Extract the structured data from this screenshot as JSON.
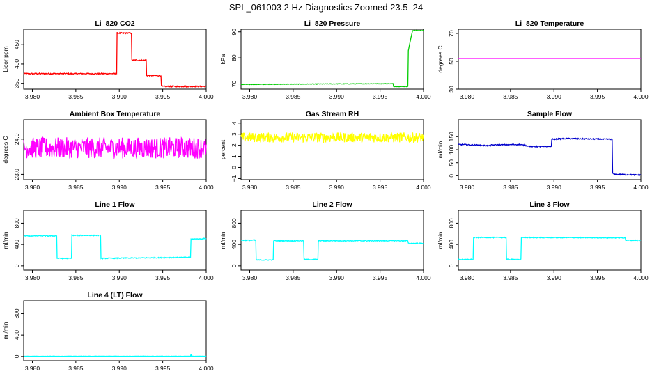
{
  "page_title": "SPL_061003  2 Hz Diagnostics Zoomed 23.5–24",
  "chart_data": [
    {
      "type": "line",
      "title": "Li–820 CO2",
      "ylabel": "Licor ppm",
      "color": "#ff0000",
      "xlim": [
        3.979,
        4.0
      ],
      "ylim": [
        335,
        490
      ],
      "xticks": [
        "3.980",
        "3.985",
        "3.990",
        "3.995",
        "4.000"
      ],
      "yticks": [
        {
          "v": 350,
          "label": "350"
        },
        {
          "v": 400,
          "label": "400"
        },
        {
          "v": 450,
          "label": "450"
        }
      ],
      "noise": 1.5,
      "series": [
        {
          "x": [
            3.979,
            3.9897,
            3.9897,
            3.9914,
            3.9914,
            3.9931,
            3.9931,
            3.9948,
            3.9948,
            4.0
          ],
          "values": [
            375,
            375,
            480,
            480,
            410,
            410,
            370,
            370,
            342,
            342
          ]
        }
      ]
    },
    {
      "type": "line",
      "title": "Li–820 Pressure",
      "ylabel": "kPa",
      "color": "#00cc00",
      "xlim": [
        3.979,
        4.0
      ],
      "ylim": [
        68,
        91
      ],
      "xticks": [
        "3.980",
        "3.985",
        "3.990",
        "3.995",
        "4.000"
      ],
      "yticks": [
        {
          "v": 70,
          "label": "70"
        },
        {
          "v": 80,
          "label": "80"
        },
        {
          "v": 90,
          "label": "90"
        }
      ],
      "noise": 0.1,
      "series": [
        {
          "x": [
            3.979,
            3.9895,
            3.9965,
            3.9965,
            3.9982,
            3.9982,
            3.9987,
            3.9987,
            4.0
          ],
          "values": [
            69.8,
            70.0,
            70.1,
            69.0,
            69.0,
            82,
            90,
            90.5,
            90.5
          ]
        }
      ]
    },
    {
      "type": "line",
      "title": "Li–820 Temperature",
      "ylabel": "degrees C",
      "color": "#ff00ff",
      "xlim": [
        3.979,
        4.0
      ],
      "ylim": [
        30,
        73
      ],
      "xticks": [
        "3.980",
        "3.985",
        "3.990",
        "3.995",
        "4.000"
      ],
      "yticks": [
        {
          "v": 30,
          "label": "30"
        },
        {
          "v": 50,
          "label": "50"
        },
        {
          "v": 70,
          "label": "70"
        }
      ],
      "noise": 0,
      "series": [
        {
          "x": [
            3.979,
            4.0
          ],
          "values": [
            52,
            52
          ]
        }
      ]
    },
    {
      "type": "line",
      "title": "Ambient Box Temperature",
      "ylabel": "degrees C",
      "color": "#ff00ff",
      "xlim": [
        3.979,
        4.0
      ],
      "ylim": [
        22.85,
        24.55
      ],
      "xticks": [
        "3.980",
        "3.985",
        "3.990",
        "3.995",
        "4.000"
      ],
      "yticks": [
        {
          "v": 23.0,
          "label": "23.0"
        },
        {
          "v": 24.0,
          "label": "24.0"
        }
      ],
      "noise": 0.3,
      "series": [
        {
          "x": [
            3.979,
            4.0
          ],
          "values": [
            23.75,
            23.75
          ]
        }
      ]
    },
    {
      "type": "line",
      "title": "Gas Stream RH",
      "ylabel": "percent",
      "color": "#ffff00",
      "xlim": [
        3.979,
        4.0
      ],
      "ylim": [
        -1.1,
        4.3
      ],
      "xticks": [
        "3.980",
        "3.985",
        "3.990",
        "3.995",
        "4.000"
      ],
      "yticks": [
        {
          "v": -1,
          "label": "−1"
        },
        {
          "v": 0,
          "label": "0"
        },
        {
          "v": 1,
          "label": "1"
        },
        {
          "v": 2,
          "label": "2"
        },
        {
          "v": 3,
          "label": "3"
        },
        {
          "v": 4,
          "label": "4"
        }
      ],
      "noise": 0.45,
      "series": [
        {
          "x": [
            3.979,
            4.0
          ],
          "values": [
            2.7,
            2.7
          ]
        }
      ]
    },
    {
      "type": "line",
      "title": "Sample Flow",
      "ylabel": "ml/min",
      "color": "#0000cc",
      "xlim": [
        3.979,
        4.0
      ],
      "ylim": [
        -15,
        215
      ],
      "xticks": [
        "3.980",
        "3.985",
        "3.990",
        "3.995",
        "4.000"
      ],
      "yticks": [
        {
          "v": 0,
          "label": "0"
        },
        {
          "v": 50,
          "label": "50"
        },
        {
          "v": 100,
          "label": "100"
        },
        {
          "v": 150,
          "label": "150"
        }
      ],
      "noise": 2,
      "series": [
        {
          "x": [
            3.979,
            3.981,
            3.9827,
            3.9827,
            3.986,
            3.9875,
            3.9875,
            3.9897,
            3.9897,
            3.9914,
            3.9967,
            3.9967,
            3.997,
            4.0
          ],
          "values": [
            120,
            118,
            115,
            118,
            120,
            112,
            112,
            112,
            140,
            143,
            140,
            10,
            5,
            3
          ]
        }
      ]
    },
    {
      "type": "line",
      "title": "Line 1 Flow",
      "ylabel": "ml/min",
      "color": "#00ffff",
      "xlim": [
        3.979,
        4.0
      ],
      "ylim": [
        -80,
        1040
      ],
      "xticks": [
        "3.980",
        "3.985",
        "3.990",
        "3.995",
        "4.000"
      ],
      "yticks": [
        {
          "v": 0,
          "label": "0"
        },
        {
          "v": 400,
          "label": "400"
        },
        {
          "v": 800,
          "label": "800"
        }
      ],
      "noise": 8,
      "series": [
        {
          "x": [
            3.979,
            3.979,
            3.9828,
            3.9828,
            3.9845,
            3.9845,
            3.9879,
            3.9879,
            3.9982,
            3.9982,
            4.0
          ],
          "values": [
            170,
            560,
            560,
            140,
            140,
            570,
            570,
            140,
            160,
            500,
            510
          ]
        }
      ]
    },
    {
      "type": "line",
      "title": "Line 2 Flow",
      "ylabel": "ml/min",
      "color": "#00ffff",
      "xlim": [
        3.979,
        4.0
      ],
      "ylim": [
        -80,
        1040
      ],
      "xticks": [
        "3.980",
        "3.985",
        "3.990",
        "3.995",
        "4.000"
      ],
      "yticks": [
        {
          "v": 0,
          "label": "0"
        },
        {
          "v": 400,
          "label": "400"
        },
        {
          "v": 800,
          "label": "800"
        }
      ],
      "noise": 8,
      "series": [
        {
          "x": [
            3.979,
            3.9807,
            3.9807,
            3.9827,
            3.9827,
            3.9862,
            3.9862,
            3.9879,
            3.9879,
            3.9982,
            3.9982,
            4.0
          ],
          "values": [
            480,
            480,
            110,
            110,
            470,
            470,
            120,
            120,
            470,
            470,
            420,
            420
          ]
        }
      ]
    },
    {
      "type": "line",
      "title": "Line 3 Flow",
      "ylabel": "ml/min",
      "color": "#00ffff",
      "xlim": [
        3.979,
        4.0
      ],
      "ylim": [
        -80,
        1040
      ],
      "xticks": [
        "3.980",
        "3.985",
        "3.990",
        "3.995",
        "4.000"
      ],
      "yticks": [
        {
          "v": 0,
          "label": "0"
        },
        {
          "v": 400,
          "label": "400"
        },
        {
          "v": 800,
          "label": "800"
        }
      ],
      "noise": 8,
      "series": [
        {
          "x": [
            3.979,
            3.979,
            3.9807,
            3.9807,
            3.9845,
            3.9845,
            3.9862,
            3.9862,
            3.9982,
            3.9982,
            4.0
          ],
          "values": [
            500,
            120,
            120,
            530,
            530,
            120,
            120,
            530,
            525,
            480,
            480
          ]
        }
      ]
    },
    {
      "type": "line",
      "title": "Line 4 (LT) Flow",
      "ylabel": "ml/min",
      "color": "#00ffff",
      "xlim": [
        3.979,
        4.0
      ],
      "ylim": [
        -80,
        1040
      ],
      "xticks": [
        "3.980",
        "3.985",
        "3.990",
        "3.995",
        "4.000"
      ],
      "yticks": [
        {
          "v": 0,
          "label": "0"
        },
        {
          "v": 400,
          "label": "400"
        },
        {
          "v": 800,
          "label": "800"
        }
      ],
      "noise": 2,
      "series": [
        {
          "x": [
            3.979,
            3.9982,
            3.9982,
            3.9983,
            3.9984,
            4.0
          ],
          "values": [
            5,
            5,
            80,
            5,
            5,
            5
          ]
        }
      ]
    }
  ]
}
